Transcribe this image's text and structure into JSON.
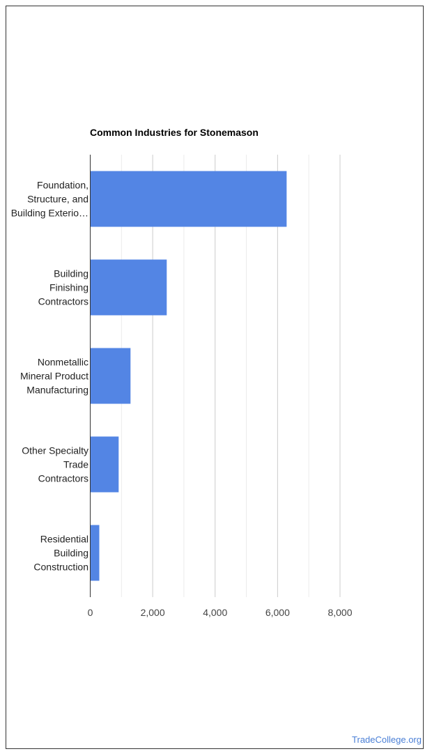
{
  "chart_data": {
    "type": "bar",
    "orientation": "horizontal",
    "title": "Common Industries for Stonemason",
    "categories": [
      [
        "Foundation,",
        "Structure, and",
        "Building Exterio…"
      ],
      [
        "Building",
        "Finishing",
        "Contractors"
      ],
      [
        "Nonmetallic",
        "Mineral Product",
        "Manufacturing"
      ],
      [
        "Other Specialty",
        "Trade",
        "Contractors"
      ],
      [
        "Residential",
        "Building",
        "Construction"
      ]
    ],
    "values": [
      6290,
      2450,
      1290,
      910,
      290
    ],
    "xlim": [
      0,
      8000
    ],
    "xticks": [
      0,
      2000,
      4000,
      6000,
      8000
    ],
    "xtick_labels": [
      "0",
      "2,000",
      "4,000",
      "6,000",
      "8,000"
    ],
    "grid": true,
    "bar_color": "#5385e4"
  },
  "watermark": "TradeCollege.org"
}
